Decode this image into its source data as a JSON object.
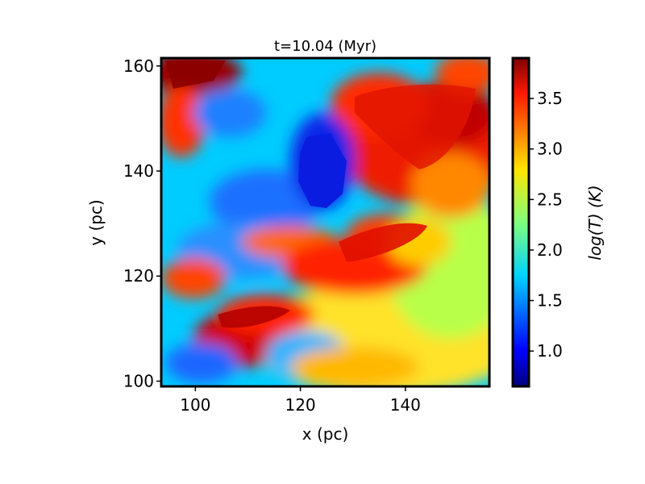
{
  "chart_data": {
    "type": "heatmap",
    "title": "t=10.04 (Myr)",
    "xlabel": "x (pc)",
    "ylabel": "y (pc)",
    "colorbar_label": "log(T) (K)",
    "colormap": "jet",
    "xlim": [
      93.5,
      156
    ],
    "ylim": [
      99,
      161.5
    ],
    "xticks": [
      100,
      120,
      140
    ],
    "yticks": [
      100,
      120,
      140,
      160
    ],
    "colorbar_range": [
      0.65,
      3.9
    ],
    "colorbar_ticks": [
      1.0,
      1.5,
      2.0,
      2.5,
      3.0,
      3.5
    ],
    "features": [
      {
        "region": "upper-left",
        "x": 100,
        "y": 158,
        "value": 3.8
      },
      {
        "region": "upper-right",
        "x": 145,
        "y": 148,
        "value": 3.7
      },
      {
        "region": "center-left",
        "x": 124,
        "y": 140,
        "value": 0.9
      },
      {
        "region": "left-middle",
        "x": 105,
        "y": 128,
        "value": 1.5
      },
      {
        "region": "lower-middle",
        "x": 112,
        "y": 110,
        "value": 3.7
      },
      {
        "region": "center-right",
        "x": 132,
        "y": 124,
        "value": 3.6
      },
      {
        "region": "lower-right",
        "x": 148,
        "y": 108,
        "value": 2.6
      },
      {
        "region": "bottom-left",
        "x": 104,
        "y": 103,
        "value": 1.3
      }
    ]
  }
}
